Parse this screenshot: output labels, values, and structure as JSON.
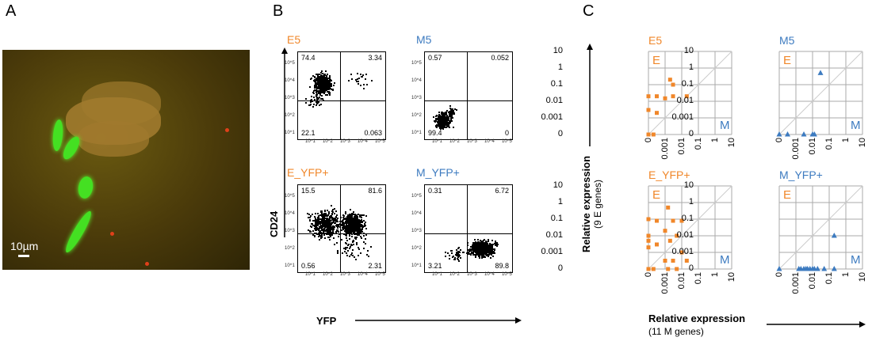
{
  "panel_letters": {
    "a": "A",
    "b": "B",
    "c": "C"
  },
  "panel_a": {
    "scale_label": "10µm"
  },
  "panel_b": {
    "y_axis_label": "CD24",
    "x_axis_label": "YFP",
    "plots": [
      {
        "title": "E5",
        "title_color": "#f0872a",
        "q_ul": "74.4",
        "q_ur": "3.34",
        "q_ll": "22.1",
        "q_lr": "0.063"
      },
      {
        "title": "M5",
        "title_color": "#3d7bc0",
        "q_ul": "0.57",
        "q_ur": "0.052",
        "q_ll": "99.4",
        "q_lr": "0"
      },
      {
        "title": "E_YFP+",
        "title_color": "#f0872a",
        "q_ul": "15.5",
        "q_ur": "81.6",
        "q_ll": "0.56",
        "q_lr": "2.31"
      },
      {
        "title": "M_YFP+",
        "title_color": "#3d7bc0",
        "q_ul": "0.31",
        "q_ur": "6.72",
        "q_ll": "3.21",
        "q_lr": "89.8"
      }
    ],
    "tick_labels": [
      "10^1",
      "10^2",
      "10^3",
      "10^4",
      "10^5"
    ]
  },
  "panel_c": {
    "y_axis_label_line1": "Relative expression",
    "y_axis_label_line2": "(9 E genes)",
    "x_axis_label_line1": "Relative expression",
    "x_axis_label_line2": "(11 M genes)",
    "tick_labels": [
      "0",
      "0.001",
      "0.01",
      "0.1",
      "1",
      "10"
    ],
    "plot_letter_e": "E",
    "plot_letter_m": "M",
    "colors": {
      "E": "#f0872a",
      "M": "#3d7bc0"
    }
  },
  "chart_data": [
    {
      "type": "scatter",
      "title": "E5",
      "xlabel": "Relative expression (11 M genes)",
      "ylabel": "Relative expression (9 E genes)",
      "axis_scale": "log-like with zero",
      "xlim": [
        0,
        10
      ],
      "ylim": [
        0,
        10
      ],
      "x_ticks": [
        "0",
        "0.001",
        "0.01",
        "0.1",
        "1",
        "10"
      ],
      "y_ticks": [
        "0",
        "0.001",
        "0.01",
        "0.1",
        "1",
        "10"
      ],
      "marker": "square",
      "color": "#f0872a",
      "points": [
        {
          "x": 0,
          "y": 0.02
        },
        {
          "x": 0,
          "y": 0.003
        },
        {
          "x": 0,
          "y": 0
        },
        {
          "x": 0.0003,
          "y": 0
        },
        {
          "x": 0.0005,
          "y": 0.02
        },
        {
          "x": 0.0005,
          "y": 0.002
        },
        {
          "x": 0.001,
          "y": 0.015
        },
        {
          "x": 0.002,
          "y": 0.2
        },
        {
          "x": 0.003,
          "y": 0.1
        },
        {
          "x": 0.003,
          "y": 0.02
        },
        {
          "x": 0.02,
          "y": 0.02
        }
      ]
    },
    {
      "type": "scatter",
      "title": "M5",
      "xlim": [
        0,
        10
      ],
      "ylim": [
        0,
        10
      ],
      "marker": "triangle",
      "color": "#3d7bc0",
      "points": [
        {
          "x": 0,
          "y": 0
        },
        {
          "x": 0.0005,
          "y": 0
        },
        {
          "x": 0.003,
          "y": 0
        },
        {
          "x": 0.01,
          "y": 0
        },
        {
          "x": 0.013,
          "y": 0
        },
        {
          "x": 0.03,
          "y": 0.5
        }
      ]
    },
    {
      "type": "scatter",
      "title": "E_YFP+",
      "xlim": [
        0,
        10
      ],
      "ylim": [
        0,
        10
      ],
      "marker": "square",
      "color": "#f0872a",
      "points": [
        {
          "x": 0,
          "y": 0.1
        },
        {
          "x": 0,
          "y": 0.01
        },
        {
          "x": 0,
          "y": 0.005
        },
        {
          "x": 0,
          "y": 0.002
        },
        {
          "x": 0,
          "y": 0
        },
        {
          "x": 0.0003,
          "y": 0
        },
        {
          "x": 0.0005,
          "y": 0.08
        },
        {
          "x": 0.0005,
          "y": 0.003
        },
        {
          "x": 0.001,
          "y": 0.02
        },
        {
          "x": 0.001,
          "y": 0.0005
        },
        {
          "x": 0.0015,
          "y": 0.5
        },
        {
          "x": 0.0015,
          "y": 0
        },
        {
          "x": 0.002,
          "y": 0.005
        },
        {
          "x": 0.003,
          "y": 0.08
        },
        {
          "x": 0.003,
          "y": 0.0005
        },
        {
          "x": 0.005,
          "y": 0.01
        },
        {
          "x": 0.005,
          "y": 0
        },
        {
          "x": 0.01,
          "y": 0.08
        },
        {
          "x": 0.01,
          "y": 0.001
        },
        {
          "x": 0.02,
          "y": 0.0005
        }
      ]
    },
    {
      "type": "scatter",
      "title": "M_YFP+",
      "xlim": [
        0,
        10
      ],
      "ylim": [
        0,
        10
      ],
      "marker": "triangle",
      "color": "#3d7bc0",
      "points": [
        {
          "x": 0,
          "y": 0
        },
        {
          "x": 0.0015,
          "y": 0
        },
        {
          "x": 0.002,
          "y": 0
        },
        {
          "x": 0.003,
          "y": 0
        },
        {
          "x": 0.004,
          "y": 0
        },
        {
          "x": 0.005,
          "y": 0
        },
        {
          "x": 0.007,
          "y": 0
        },
        {
          "x": 0.01,
          "y": 0
        },
        {
          "x": 0.013,
          "y": 0
        },
        {
          "x": 0.02,
          "y": 0
        },
        {
          "x": 0.05,
          "y": 0
        },
        {
          "x": 0.2,
          "y": 0.01
        },
        {
          "x": 0.2,
          "y": 0
        }
      ]
    }
  ]
}
